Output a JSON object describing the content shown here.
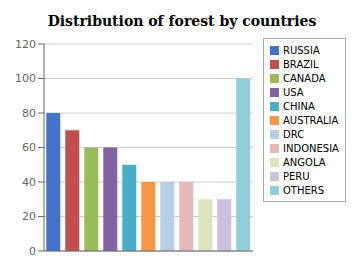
{
  "chart_data": {
    "type": "bar",
    "title": "Distribution of forest by countries",
    "categories": [
      "RUSSIA",
      "BRAZIL",
      "CANADA",
      "USA",
      "CHINA",
      "AUSTRALIA",
      "DRC",
      "INDONESIA",
      "ANGOLA",
      "PERU",
      "OTHERS"
    ],
    "values": [
      80,
      70,
      60,
      60,
      50,
      40,
      40,
      40,
      30,
      30,
      100
    ],
    "colors": [
      "#4472C4",
      "#C0504D",
      "#9BBB59",
      "#8064A2",
      "#4BACC6",
      "#F79646",
      "#B8CCE4",
      "#E6B9B8",
      "#D7E4BC",
      "#CCC0DA",
      "#92CDDC"
    ],
    "ylim": [
      0,
      120
    ],
    "yticks": [
      0,
      20,
      40,
      60,
      80,
      100,
      120
    ],
    "grid": true,
    "legend": "right",
    "tick_labels": "y"
  }
}
